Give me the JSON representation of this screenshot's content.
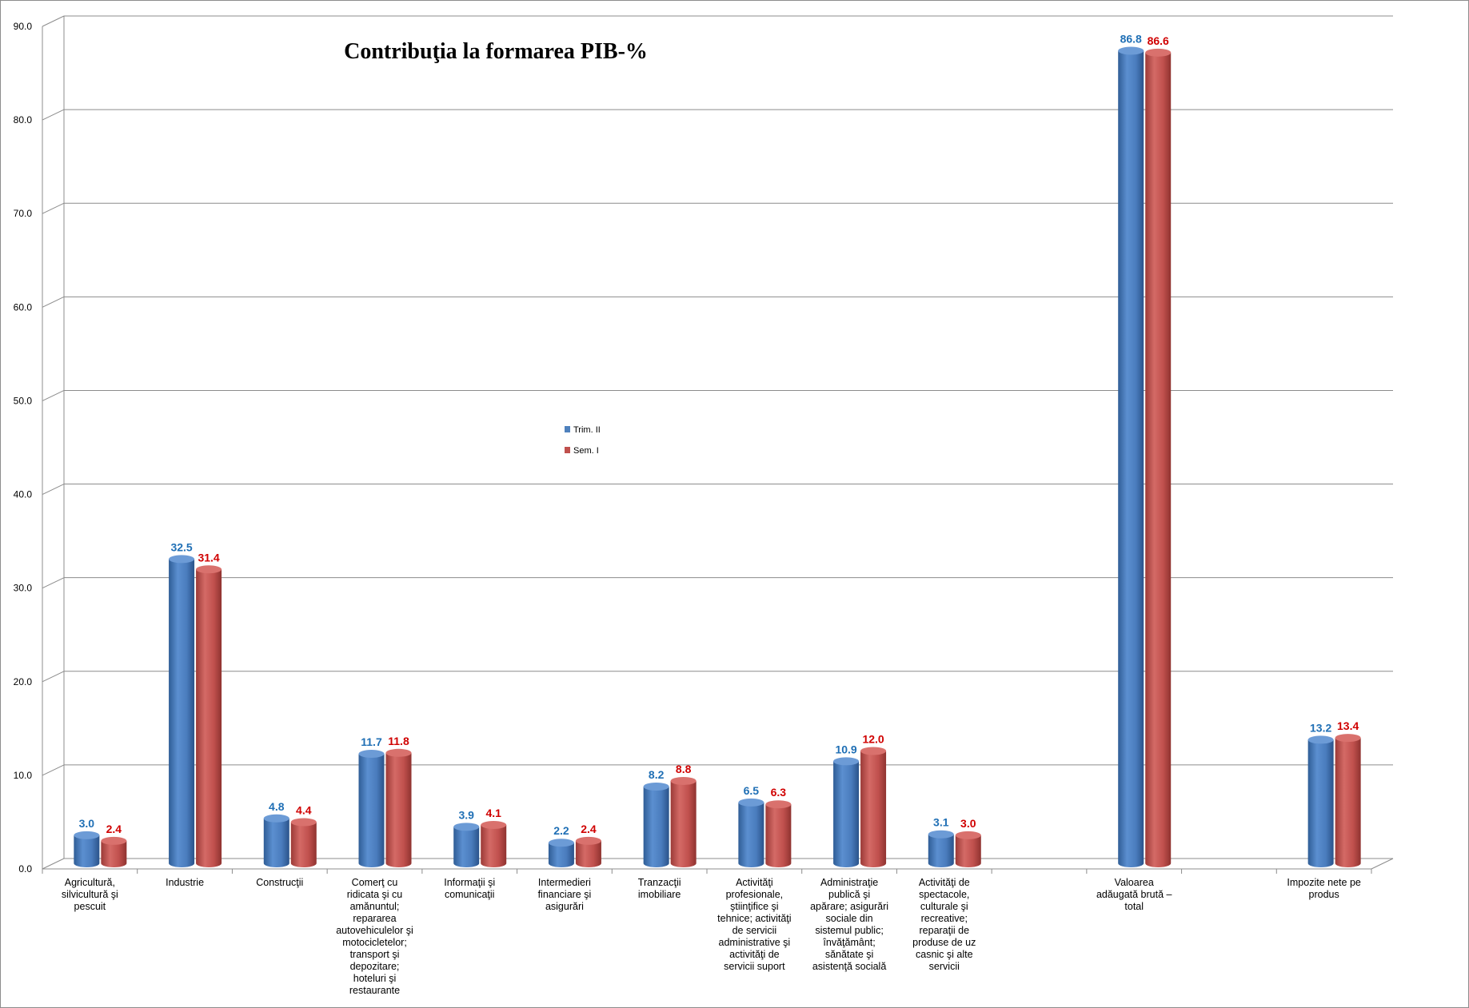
{
  "chart_data": {
    "type": "bar",
    "title": "Contribuţia la formarea PIB-%",
    "xlabel": "",
    "ylabel": "",
    "ylim": [
      0,
      90
    ],
    "yticks": [
      "0.0",
      "10.0",
      "20.0",
      "30.0",
      "40.0",
      "50.0",
      "60.0",
      "70.0",
      "80.0",
      "90.0"
    ],
    "grid": true,
    "legend_position": "center",
    "categories": [
      [
        "Agricultură,",
        "silvicultură şi",
        "pescuit"
      ],
      [
        "Industrie"
      ],
      [
        "Construcţii"
      ],
      [
        "Comerţ  cu",
        "ridicata  şi cu",
        "amănuntul;",
        "repararea",
        "autovehiculelor  şi",
        "motocicletelor;",
        "transport  şi",
        "depozitare;",
        "hoteluri  şi",
        "restaurante"
      ],
      [
        "Informaţii şi",
        "comunicaţii"
      ],
      [
        "Intermedieri",
        "financiare  şi",
        "asigurări"
      ],
      [
        "Tranzacţii",
        "imobiliare"
      ],
      [
        "Activităţi",
        "profesionale,",
        "ştiinţifice  şi",
        "tehnice; activităţi",
        "de servicii",
        "administrative  şi",
        "activităţi  de",
        "servicii suport"
      ],
      [
        "Administraţie",
        "publică  şi",
        "apărare;  asigurări",
        "sociale din",
        "sistemul public;",
        "învăţământ;",
        "sănătate  şi",
        "asistenţă socială"
      ],
      [
        "Activităţi de",
        "spectacole,",
        "culturale  şi",
        "recreative;",
        "reparaţii  de",
        "produse  de uz",
        "casnic şi alte",
        "servicii"
      ],
      [],
      [
        "Valoarea",
        "adăugată  brută  –",
        "total"
      ],
      [],
      [
        "Impozite nete pe",
        "produs"
      ]
    ],
    "series": [
      {
        "name": "Trim. II",
        "color": "#4f81bd",
        "label_color": "#1f6fb5",
        "values": [
          3.0,
          32.5,
          4.8,
          11.7,
          3.9,
          2.2,
          8.2,
          6.5,
          10.9,
          3.1,
          null,
          86.8,
          null,
          13.2
        ],
        "labels": [
          "3.0",
          "32.5",
          "4.8",
          "11.7",
          "3.9",
          "2.2",
          "8.2",
          "6.5",
          "10.9",
          "3.1",
          null,
          "86.8",
          null,
          "13.2"
        ]
      },
      {
        "name": "Sem. I",
        "color": "#c0504d",
        "label_color": "#d00000",
        "values": [
          2.4,
          31.4,
          4.4,
          11.8,
          4.1,
          2.4,
          8.8,
          6.3,
          12.0,
          3.0,
          null,
          86.6,
          null,
          13.4
        ],
        "labels": [
          "2.4",
          "31.4",
          "4.4",
          "11.8",
          "4.1",
          "2.4",
          "8.8",
          "6.3",
          "12.0",
          "3.0",
          null,
          "86.6",
          null,
          "13.4"
        ]
      }
    ]
  }
}
